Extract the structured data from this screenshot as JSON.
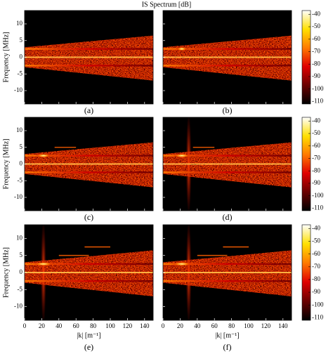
{
  "chart_data": {
    "type": "heatmap",
    "title": "IS Spectrum [dB]",
    "ylabel": "Frequency [MHz]",
    "xlabel": "|k| [m⁻¹]",
    "xlim": [
      0,
      150
    ],
    "xticks": [
      0,
      20,
      40,
      60,
      80,
      100,
      120,
      140
    ],
    "ylim": [
      -14,
      14
    ],
    "yticks": [
      10,
      5,
      0,
      -5,
      -10
    ],
    "clim": [
      -112,
      -37
    ],
    "cticks": [
      -40,
      -50,
      -60,
      -70,
      -80,
      -90,
      -100,
      -110
    ],
    "colormap": [
      "#000000",
      "#6a0000",
      "#e00000",
      "#ff7a00",
      "#ffe000",
      "#ffffff"
    ],
    "panels": [
      "(a)",
      "(b)",
      "(c)",
      "(d)",
      "(e)",
      "(f)"
    ]
  }
}
